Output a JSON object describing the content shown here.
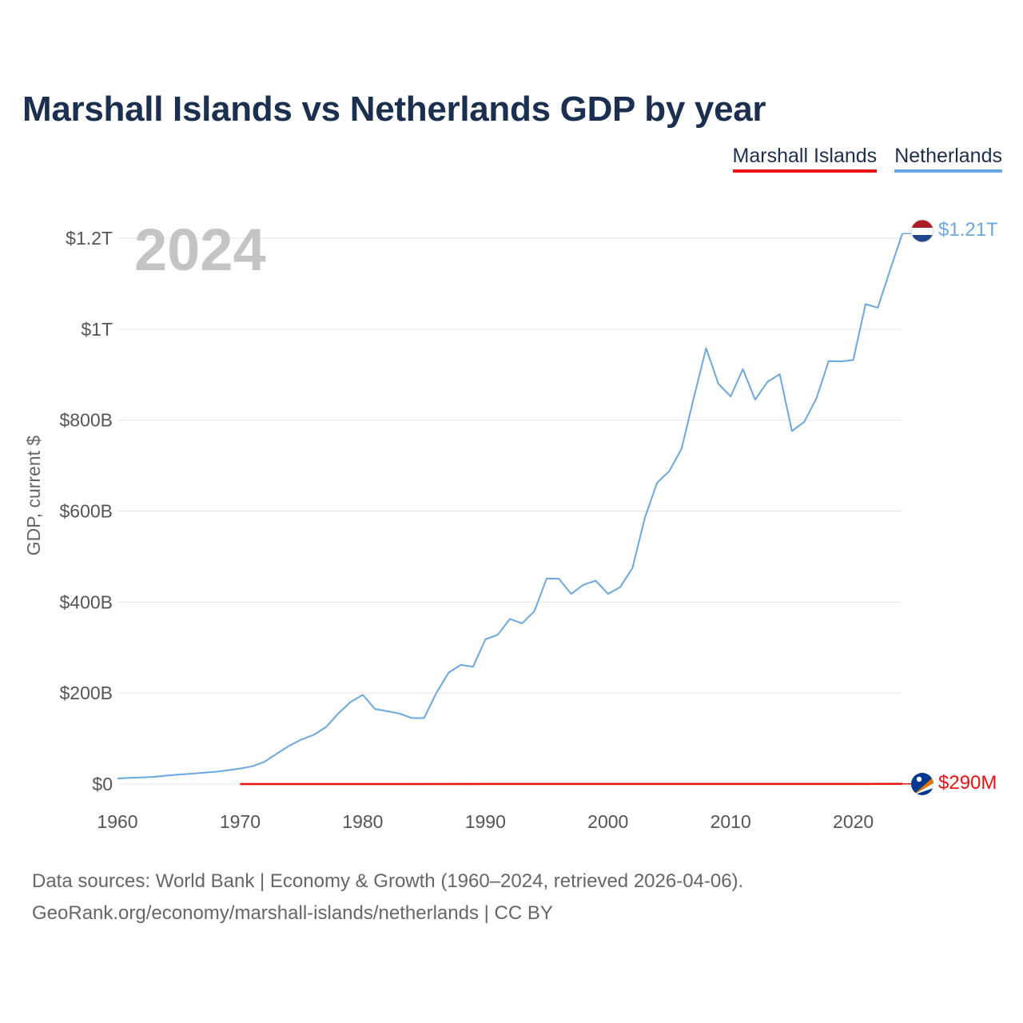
{
  "header": {
    "title": "Marshall Islands vs Netherlands GDP by year",
    "legend": [
      {
        "name": "Marshall Islands",
        "color": "#ee1111"
      },
      {
        "name": "Netherlands",
        "color": "#6aa8e4"
      }
    ]
  },
  "source": {
    "line1": "Data sources: World Bank | Economy & Growth (1960–2024, retrieved 2026-04-06).",
    "line2": "GeoRank.org/economy/marshall-islands/netherlands | CC BY"
  },
  "chart_data": {
    "type": "line",
    "title": "Marshall Islands vs Netherlands GDP by year",
    "year_label": "2024",
    "ylabel": "GDP, current $",
    "xlabel": "",
    "xlim": [
      1960,
      2024
    ],
    "ylim": [
      0,
      1200
    ],
    "y_unit": "billions USD",
    "grid": true,
    "x_ticks": [
      {
        "value": 1960,
        "label": "1960"
      },
      {
        "value": 1970,
        "label": "1970"
      },
      {
        "value": 1980,
        "label": "1980"
      },
      {
        "value": 1990,
        "label": "1990"
      },
      {
        "value": 2000,
        "label": "2000"
      },
      {
        "value": 2010,
        "label": "2010"
      },
      {
        "value": 2020,
        "label": "2020"
      }
    ],
    "y_ticks": [
      {
        "value": 0,
        "label": "$0"
      },
      {
        "value": 200,
        "label": "$200B"
      },
      {
        "value": 400,
        "label": "$400B"
      },
      {
        "value": 600,
        "label": "$600B"
      },
      {
        "value": 800,
        "label": "$800B"
      },
      {
        "value": 1000,
        "label": "$1T"
      },
      {
        "value": 1200,
        "label": "$1.2T"
      }
    ],
    "series": [
      {
        "name": "Netherlands",
        "color": "#6aa8e4",
        "end_label": "$1.21T",
        "flag": "netherlands-flag-icon",
        "x": [
          1960,
          1961,
          1962,
          1963,
          1964,
          1965,
          1966,
          1967,
          1968,
          1969,
          1970,
          1971,
          1972,
          1973,
          1974,
          1975,
          1976,
          1977,
          1978,
          1979,
          1980,
          1981,
          1982,
          1983,
          1984,
          1985,
          1986,
          1987,
          1988,
          1989,
          1990,
          1991,
          1992,
          1993,
          1994,
          1995,
          1996,
          1997,
          1998,
          1999,
          2000,
          2001,
          2002,
          2003,
          2004,
          2005,
          2006,
          2007,
          2008,
          2009,
          2010,
          2011,
          2012,
          2013,
          2014,
          2015,
          2016,
          2017,
          2018,
          2019,
          2020,
          2021,
          2022,
          2023,
          2024
        ],
        "values": [
          12.3,
          13.5,
          14.6,
          15.8,
          18.5,
          20.9,
          22.7,
          24.8,
          27.0,
          30.4,
          34.0,
          39.0,
          49.0,
          67.0,
          84.0,
          98.0,
          108.0,
          125.0,
          155.0,
          180.0,
          196.0,
          165.0,
          160.0,
          155.0,
          145.0,
          145.0,
          200.0,
          245.0,
          262.0,
          258.0,
          318.0,
          328.0,
          363.0,
          353.0,
          380.0,
          452.0,
          451.0,
          418.0,
          438.0,
          447.0,
          418.0,
          433.0,
          475.0,
          585.0,
          662.0,
          688.0,
          737.0,
          850.0,
          958.0,
          880.0,
          852.0,
          912.0,
          845.0,
          884.0,
          901.0,
          776.0,
          796.0,
          848.0,
          930.0,
          929.0,
          932.0,
          1055.0,
          1047.0,
          1130.0,
          1210.0
        ]
      },
      {
        "name": "Marshall Islands",
        "color": "#ee1111",
        "end_label": "$290M",
        "flag": "marshall-islands-flag-icon",
        "x": [
          1970,
          1980,
          1990,
          2000,
          2010,
          2020,
          2024
        ],
        "values": [
          0.03,
          0.06,
          0.1,
          0.11,
          0.17,
          0.24,
          0.29
        ]
      }
    ]
  }
}
